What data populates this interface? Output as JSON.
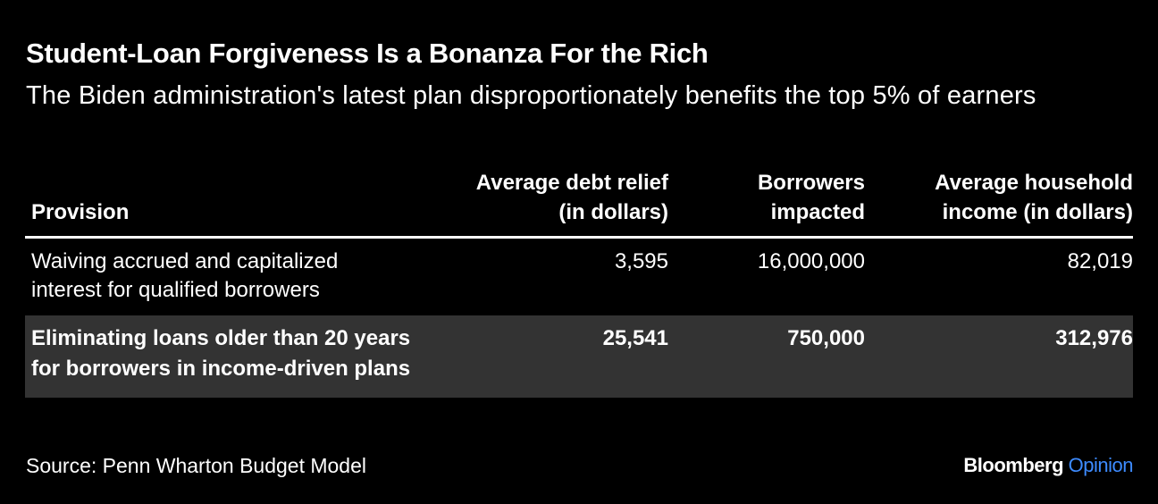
{
  "header": {
    "title": "Student-Loan Forgiveness Is a Bonanza For the Rich",
    "subtitle": "The Biden administration's latest plan disproportionately benefits the top 5% of earners"
  },
  "table": {
    "columns": [
      "Provision",
      "Average debt relief (in dollars)",
      "Borrowers impacted",
      "Average household income (in dollars)"
    ],
    "rows": [
      [
        "Waiving accrued and capitalized interest for qualified borrowers",
        "3,595",
        "16,000,000",
        "82,019"
      ],
      [
        "Eliminating loans older than 20 years for borrowers in income-driven plans",
        "25,541",
        "750,000",
        "312,976"
      ]
    ]
  },
  "footer": {
    "source": "Source: Penn Wharton Budget Model",
    "brand": "Bloomberg",
    "brand_section": "Opinion"
  }
}
